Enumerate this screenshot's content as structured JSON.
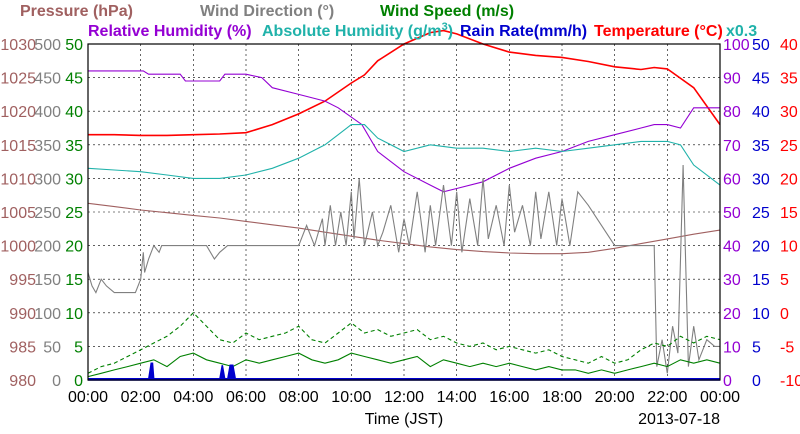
{
  "chart_data": {
    "type": "line",
    "date": "2013-07-18",
    "xlabel": "Time (JST)",
    "x_ticks": [
      "00:00",
      "02:00",
      "04:00",
      "06:00",
      "08:00",
      "10:00",
      "12:00",
      "14:00",
      "16:00",
      "18:00",
      "20:00",
      "22:00",
      "00:00"
    ],
    "grid": true,
    "legend": [
      {
        "text": "Pressure (hPa)",
        "color": "#a06060"
      },
      {
        "text": "Wind Direction (°)",
        "color": "#808080"
      },
      {
        "text": "Wind Speed (m/s)",
        "color": "#008000"
      },
      {
        "text": "Relative Humidity (%)",
        "color": "#9400d3"
      },
      {
        "text": "Absolute Humidity (g/m",
        "sup": "3",
        "close": ")",
        "color": "#20b2aa"
      },
      {
        "text": "Rain Rate(mm/h)",
        "color": "#0000cd"
      },
      {
        "text": "Temperature (°C)",
        "color": "#ff0000"
      },
      {
        "text": "x0.3",
        "color": "#20b2aa"
      }
    ],
    "axes": {
      "pressure": {
        "color": "#a06060",
        "ylim": [
          980,
          1030
        ],
        "ticks": [
          "1030",
          "1025",
          "1020",
          "1015",
          "1010",
          "1005",
          "1000",
          "995",
          "990",
          "985",
          "980"
        ]
      },
      "wind_direction": {
        "color": "#808080",
        "ylim": [
          0,
          500
        ],
        "ticks": [
          "500",
          "450",
          "400",
          "350",
          "300",
          "250",
          "200",
          "150",
          "100",
          "50",
          "0"
        ]
      },
      "wind_speed": {
        "color": "#008000",
        "ylim": [
          0,
          50
        ],
        "ticks": [
          "50",
          "45",
          "40",
          "35",
          "30",
          "25",
          "20",
          "15",
          "10",
          "5",
          "0"
        ]
      },
      "humidity": {
        "color": "#9400d3",
        "ylim": [
          0,
          100
        ],
        "ticks": [
          "100",
          "90",
          "80",
          "70",
          "60",
          "50",
          "40",
          "30",
          "20",
          "10",
          "0"
        ]
      },
      "rain_rate": {
        "color": "#0000cd",
        "ylim": [
          0,
          50
        ],
        "ticks": [
          "50",
          "45",
          "40",
          "35",
          "30",
          "25",
          "20",
          "15",
          "10",
          "5",
          "0"
        ]
      },
      "temperature": {
        "color": "#ff0000",
        "ylim": [
          -10,
          40
        ],
        "ticks": [
          "40",
          "35",
          "30",
          "25",
          "20",
          "15",
          "10",
          "5",
          "0",
          "-5",
          "-10"
        ]
      }
    },
    "series": [
      {
        "name": "Temperature (°C)",
        "color": "#ff0000",
        "axis": "temperature",
        "x": [
          0,
          1,
          2,
          3,
          4,
          5,
          6,
          7,
          8,
          9,
          10,
          10.5,
          11,
          12,
          13,
          13.5,
          14,
          15,
          16,
          17,
          18,
          19,
          20,
          21,
          21.5,
          22,
          23,
          24
        ],
        "y": [
          26.5,
          26.5,
          26.4,
          26.4,
          26.5,
          26.6,
          26.8,
          28,
          29.6,
          31.5,
          34.2,
          35.4,
          37.5,
          40,
          41.7,
          42,
          41.5,
          40,
          38.8,
          38.3,
          38,
          37.4,
          36.6,
          36.2,
          36.5,
          36.3,
          33.5,
          28
        ]
      },
      {
        "name": "Relative Humidity (%)",
        "color": "#9400d3",
        "axis": "humidity",
        "x": [
          0,
          2.1,
          2.3,
          3,
          3.5,
          3.7,
          5,
          5.2,
          6,
          6.6,
          7,
          8,
          9,
          9.5,
          10.4,
          11,
          12,
          13,
          13.5,
          14,
          15,
          16,
          17,
          18,
          19,
          20,
          21,
          21.5,
          22,
          22.5,
          23,
          24
        ],
        "y": [
          92,
          92,
          91,
          91,
          91,
          89,
          89,
          91,
          91,
          90,
          87,
          85,
          83,
          81,
          76,
          68,
          62,
          58,
          56,
          57,
          59,
          63,
          66,
          68,
          71,
          73,
          75,
          76,
          76,
          75,
          81,
          81
        ]
      },
      {
        "name": "Absolute Humidity (g/m3) x0.3",
        "color": "#20b2aa",
        "axis": "humidity",
        "x": [
          0,
          1,
          2,
          3,
          4,
          5,
          6,
          7,
          8,
          9,
          9.5,
          10,
          10.5,
          11,
          12,
          13,
          14,
          15,
          16,
          17,
          18,
          19,
          20,
          21,
          22,
          22.5,
          23,
          24
        ],
        "y": [
          63,
          62.5,
          62,
          61,
          60,
          60,
          61,
          63,
          66,
          70,
          73,
          76,
          76,
          72,
          68,
          70,
          69,
          69,
          68,
          69,
          68,
          69,
          70,
          71,
          71,
          70,
          64,
          58
        ]
      },
      {
        "name": "Pressure (hPa)",
        "color": "#a06060",
        "axis": "pressure",
        "x": [
          0,
          1,
          2,
          3,
          4,
          5,
          6,
          7,
          8,
          9,
          10,
          11,
          12,
          13,
          14,
          15,
          16,
          17,
          18,
          19,
          20,
          21,
          22,
          23,
          24
        ],
        "y": [
          1006.3,
          1005.8,
          1005.3,
          1004.9,
          1004.5,
          1004.1,
          1003.6,
          1003.1,
          1002.6,
          1002,
          1001.4,
          1000.8,
          1000.3,
          999.8,
          999.4,
          999.1,
          998.9,
          998.8,
          998.8,
          999,
          999.6,
          1000.3,
          1001,
          1001.7,
          1002.3
        ]
      },
      {
        "name": "Wind Direction (°)",
        "color": "#808080",
        "axis": "wind_direction",
        "x": [
          0,
          0.15,
          0.3,
          0.5,
          0.7,
          1.0,
          1.4,
          1.8,
          2.0,
          2.1,
          2.15,
          2.3,
          2.5,
          2.7,
          2.8,
          3.0,
          3.5,
          4.0,
          4.5,
          4.8,
          5.0,
          5.3,
          5.5,
          5.8,
          6.0,
          6.5,
          7.0,
          7.5,
          8.0,
          8.3,
          8.6,
          8.9,
          9.0,
          9.2,
          9.4,
          9.6,
          9.8,
          10.0,
          10.1,
          10.3,
          10.5,
          10.8,
          11.0,
          11.2,
          11.5,
          11.8,
          12.0,
          12.2,
          12.5,
          12.8,
          13.0,
          13.2,
          13.5,
          13.8,
          14.0,
          14.2,
          14.5,
          14.8,
          15.0,
          15.2,
          15.5,
          15.8,
          16.0,
          16.2,
          16.5,
          16.8,
          17.0,
          17.2,
          17.5,
          17.8,
          18.0,
          18.3,
          18.6,
          19.0,
          19.5,
          20.0,
          20.5,
          21.0,
          21.3,
          21.5,
          21.6,
          21.8,
          22.0,
          22.2,
          22.4,
          22.6,
          22.8,
          23.0,
          23.2,
          23.5,
          23.8,
          24.0
        ],
        "y": [
          160,
          140,
          130,
          150,
          140,
          130,
          130,
          130,
          150,
          190,
          160,
          180,
          200,
          190,
          200,
          200,
          200,
          200,
          200,
          180,
          190,
          200,
          200,
          200,
          200,
          200,
          200,
          200,
          200,
          230,
          200,
          240,
          200,
          260,
          200,
          250,
          200,
          280,
          210,
          300,
          200,
          250,
          200,
          220,
          260,
          190,
          240,
          200,
          280,
          190,
          260,
          200,
          290,
          200,
          280,
          190,
          270,
          200,
          300,
          210,
          260,
          200,
          290,
          220,
          260,
          200,
          280,
          210,
          280,
          200,
          270,
          200,
          280,
          260,
          230,
          200,
          200,
          200,
          200,
          200,
          20,
          60,
          10,
          80,
          40,
          320,
          20,
          80,
          30,
          60,
          50,
          50
        ]
      },
      {
        "name": "Wind Speed (m/s) avg",
        "color": "#008000",
        "axis": "wind_speed",
        "style": "solid",
        "x": [
          0,
          0.5,
          1,
          1.5,
          2,
          2.5,
          3,
          3.5,
          4,
          4.5,
          5,
          5.5,
          6,
          6.5,
          7,
          7.5,
          8,
          8.5,
          9,
          9.5,
          10,
          10.5,
          11,
          11.5,
          12,
          12.5,
          13,
          13.5,
          14,
          14.5,
          15,
          15.5,
          16,
          16.5,
          17,
          17.5,
          18,
          18.5,
          19,
          19.5,
          20,
          20.5,
          21,
          21.5,
          22,
          22.5,
          23,
          23.5,
          24
        ],
        "y": [
          0.5,
          1,
          1.5,
          2,
          2.5,
          3,
          2,
          3.5,
          4,
          3,
          2.5,
          2,
          3,
          2.5,
          3,
          3.5,
          4,
          3,
          2.5,
          3,
          4,
          3.5,
          3,
          2.5,
          3,
          3.5,
          2,
          3,
          2.5,
          2,
          2.5,
          2,
          2.5,
          2,
          1.5,
          2,
          1.5,
          1.5,
          1,
          1.5,
          1,
          1.5,
          2,
          2.5,
          2,
          3,
          2.5,
          3,
          2.5
        ]
      },
      {
        "name": "Wind Speed (m/s) gust",
        "color": "#008000",
        "axis": "wind_speed",
        "style": "dashed",
        "x": [
          0,
          0.5,
          1,
          1.5,
          2,
          2.5,
          3,
          3.5,
          4,
          4.5,
          5,
          5.5,
          6,
          6.5,
          7,
          7.5,
          8,
          8.5,
          9,
          9.5,
          10,
          10.5,
          11,
          11.5,
          12,
          12.5,
          13,
          13.5,
          14,
          14.5,
          15,
          15.5,
          16,
          16.5,
          17,
          17.5,
          18,
          18.5,
          19,
          19.5,
          20,
          20.5,
          21,
          21.5,
          22,
          22.5,
          23,
          23.5,
          24
        ],
        "y": [
          1,
          2,
          2.5,
          3.5,
          4.5,
          5.5,
          6.5,
          8,
          10,
          8,
          6,
          5.5,
          7,
          6,
          6.5,
          7,
          8,
          6,
          5.5,
          7,
          8.5,
          7,
          7.5,
          6.5,
          7,
          7.5,
          6,
          6.5,
          5.5,
          5,
          5.5,
          4.5,
          5,
          4.5,
          4,
          4.5,
          3.5,
          3,
          2.5,
          3.5,
          2.5,
          3,
          4.5,
          5.5,
          5,
          6.5,
          5.5,
          6.5,
          6
        ]
      },
      {
        "name": "Rain Rate(mm/h)",
        "color": "#0000cd",
        "axis": "rain_rate",
        "style": "fill",
        "x": [
          0,
          2.3,
          2.4,
          2.45,
          2.5,
          5.0,
          5.1,
          5.2,
          5.3,
          5.4,
          5.5,
          5.6,
          24
        ],
        "y": [
          0,
          0,
          2.5,
          2.5,
          0,
          0,
          2.2,
          0,
          0,
          2.2,
          2.2,
          0,
          0
        ]
      }
    ]
  }
}
